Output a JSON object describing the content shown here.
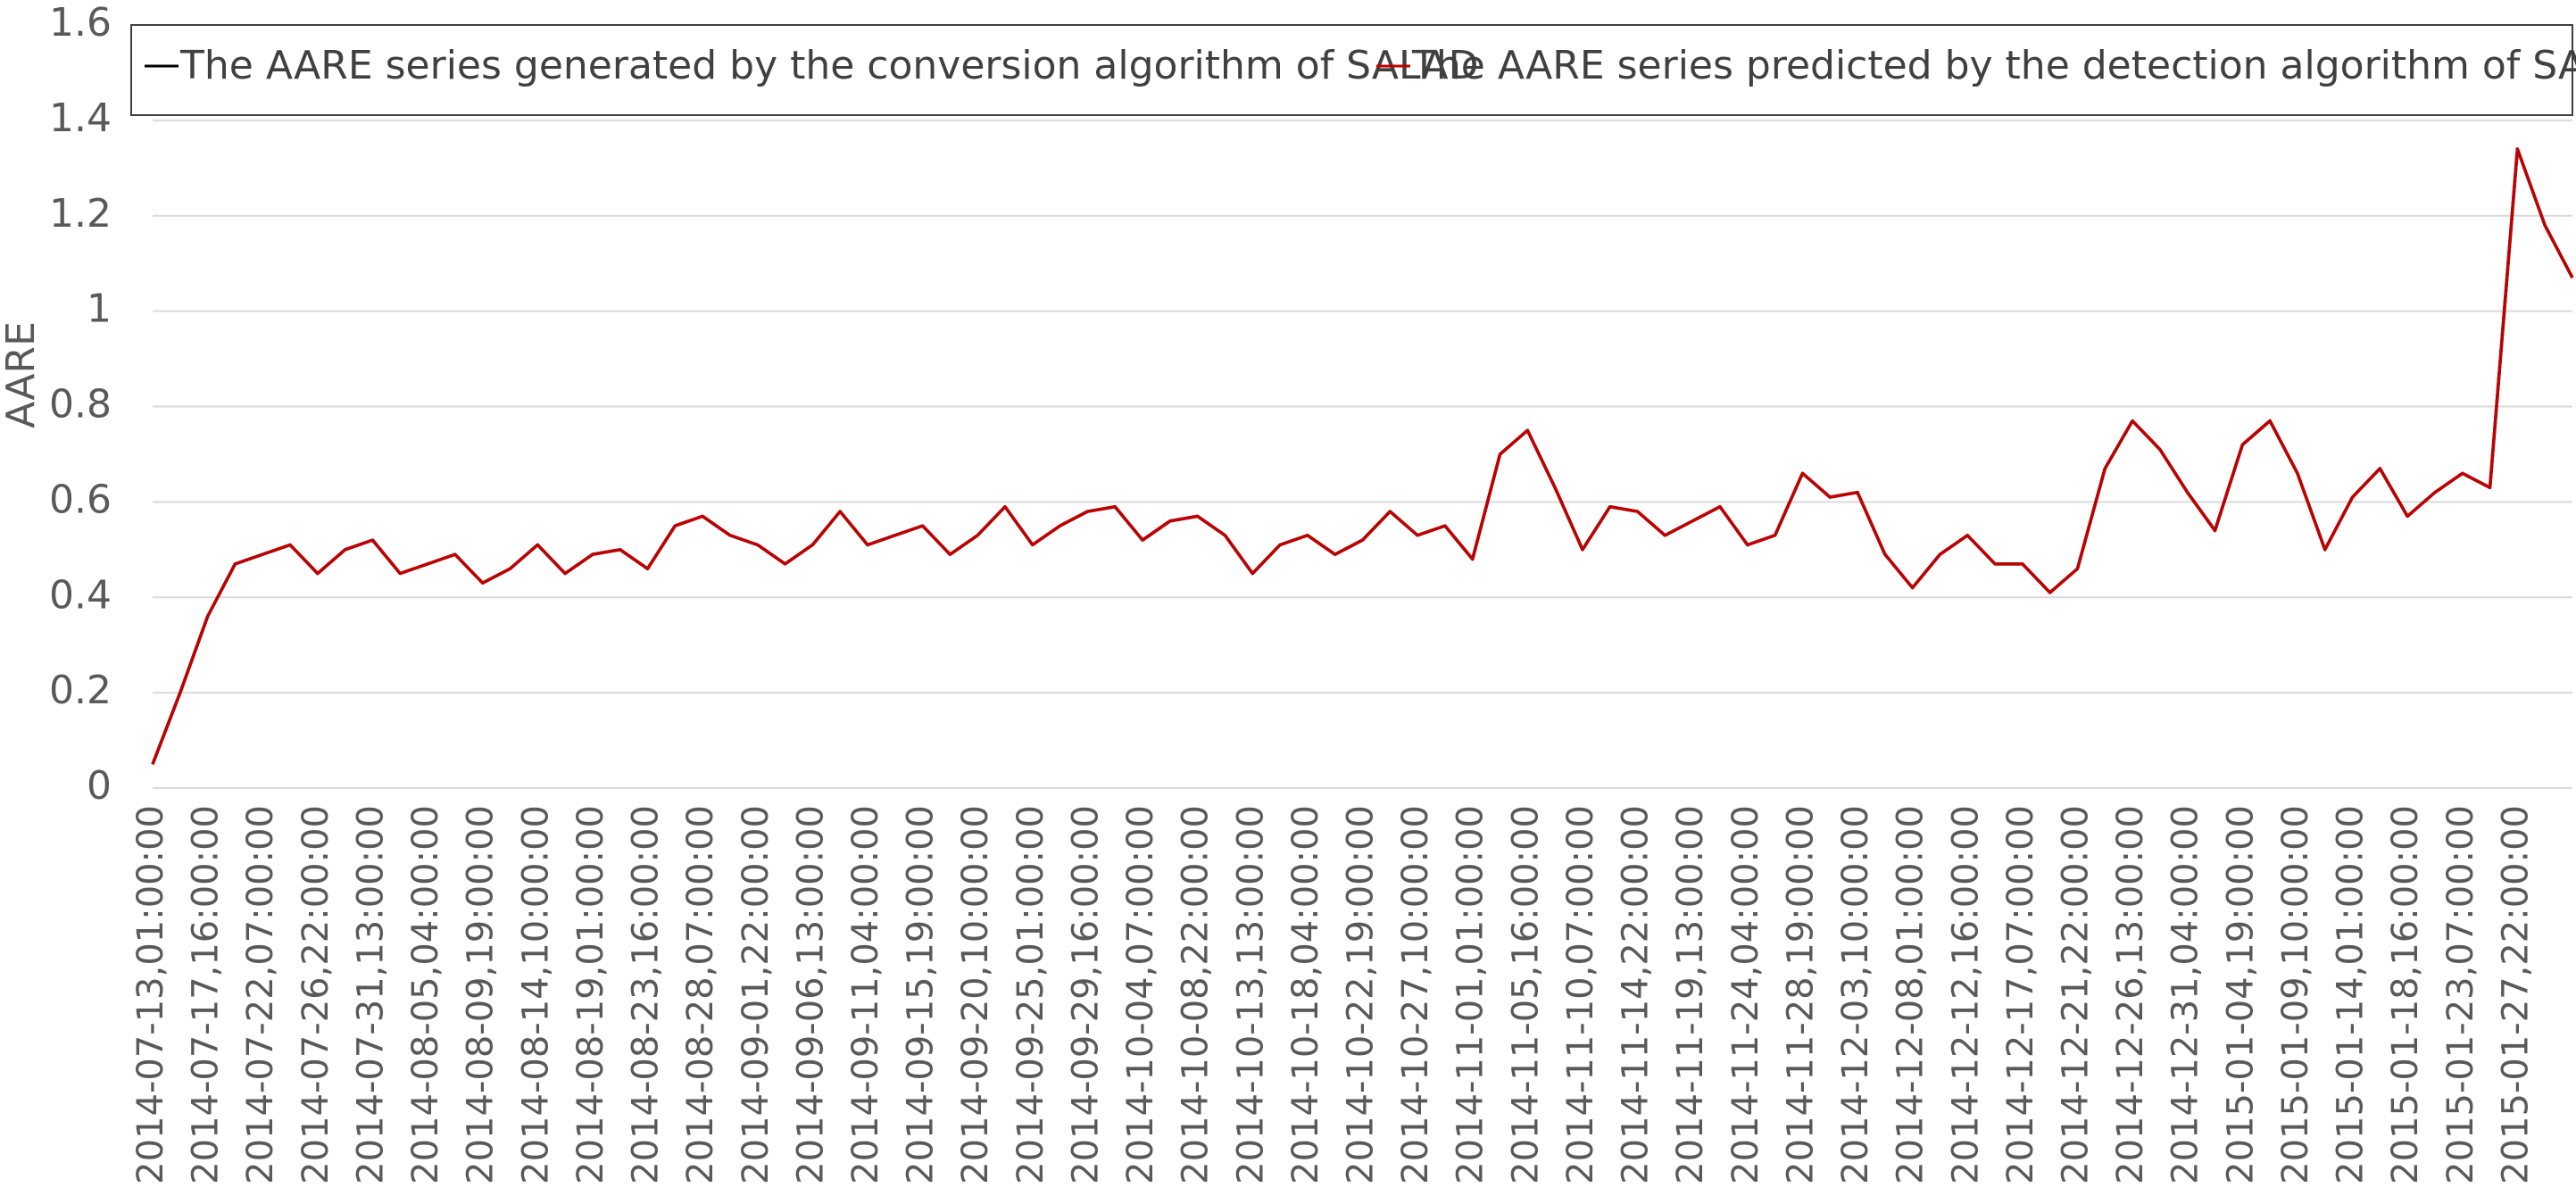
{
  "chart_data": {
    "type": "line",
    "ylabel": "AARE",
    "categories": [
      "2014-07-13,01:00:00",
      null,
      "2014-07-17,16:00:00",
      null,
      "2014-07-22,07:00:00",
      null,
      "2014-07-26,22:00:00",
      null,
      "2014-07-31,13:00:00",
      null,
      "2014-08-05,04:00:00",
      null,
      "2014-08-09,19:00:00",
      null,
      "2014-08-14,10:00:00",
      null,
      "2014-08-19,01:00:00",
      null,
      "2014-08-23,16:00:00",
      null,
      "2014-08-28,07:00:00",
      null,
      "2014-09-01,22:00:00",
      null,
      "2014-09-06,13:00:00",
      null,
      "2014-09-11,04:00:00",
      null,
      "2014-09-15,19:00:00",
      null,
      "2014-09-20,10:00:00",
      null,
      "2014-09-25,01:00:00",
      null,
      "2014-09-29,16:00:00",
      null,
      "2014-10-04,07:00:00",
      null,
      "2014-10-08,22:00:00",
      null,
      "2014-10-13,13:00:00",
      null,
      "2014-10-18,04:00:00",
      null,
      "2014-10-22,19:00:00",
      null,
      "2014-10-27,10:00:00",
      null,
      "2014-11-01,01:00:00",
      null,
      "2014-11-05,16:00:00",
      null,
      "2014-11-10,07:00:00",
      null,
      "2014-11-14,22:00:00",
      null,
      "2014-11-19,13:00:00",
      null,
      "2014-11-24,04:00:00",
      null,
      "2014-11-28,19:00:00",
      null,
      "2014-12-03,10:00:00",
      null,
      "2014-12-08,01:00:00",
      null,
      "2014-12-12,16:00:00",
      null,
      "2014-12-17,07:00:00",
      null,
      "2014-12-21,22:00:00",
      null,
      "2014-12-26,13:00:00",
      null,
      "2014-12-31,04:00:00",
      null,
      "2015-01-04,19:00:00",
      null,
      "2015-01-09,10:00:00",
      null,
      "2015-01-14,01:00:00",
      null,
      "2015-01-18,16:00:00",
      null,
      "2015-01-23,07:00:00",
      null,
      "2015-01-27,22:00:00",
      null,
      null
    ],
    "series": [
      {
        "name": "The AARE series generated by the conversion algorithm of SALAD",
        "color": "#000000",
        "values": [
          0.05,
          0.2,
          0.36,
          0.47,
          0.49,
          0.51,
          0.45,
          0.5,
          0.52,
          0.45,
          0.47,
          0.49,
          0.43,
          0.46,
          0.51,
          0.45,
          0.49,
          0.5,
          0.46,
          0.55,
          0.57,
          0.53,
          0.51,
          0.47,
          0.51,
          0.58,
          0.51,
          0.53,
          0.55,
          0.49,
          0.53,
          0.59,
          0.51,
          0.55,
          0.58,
          0.59,
          0.52,
          0.56,
          0.57,
          0.53,
          0.45,
          0.51,
          0.53,
          0.49,
          0.52,
          0.58,
          0.53,
          0.55,
          0.48,
          0.7,
          0.75,
          0.63,
          0.5,
          0.59,
          0.58,
          0.53,
          0.56,
          0.59,
          0.51,
          0.53,
          0.66,
          0.61,
          0.62,
          0.49,
          0.42,
          0.49,
          0.53,
          0.47,
          0.47,
          0.41,
          0.46,
          0.67,
          0.77,
          0.71,
          0.62,
          0.54,
          0.72,
          0.77,
          0.66,
          0.5,
          0.61,
          0.67,
          0.57,
          0.62,
          0.66,
          0.63,
          1.34,
          1.18,
          1.07
        ]
      },
      {
        "name": "The AARE series predicted by the detection algorithm of SALAD",
        "color": "#c00000",
        "values": [
          0.05,
          0.2,
          0.36,
          0.47,
          0.49,
          0.51,
          0.45,
          0.5,
          0.52,
          0.45,
          0.47,
          0.49,
          0.43,
          0.46,
          0.51,
          0.45,
          0.49,
          0.5,
          0.46,
          0.55,
          0.57,
          0.53,
          0.51,
          0.47,
          0.51,
          0.58,
          0.51,
          0.53,
          0.55,
          0.49,
          0.53,
          0.59,
          0.51,
          0.55,
          0.58,
          0.59,
          0.52,
          0.56,
          0.57,
          0.53,
          0.45,
          0.51,
          0.53,
          0.49,
          0.52,
          0.58,
          0.53,
          0.55,
          0.48,
          0.7,
          0.75,
          0.63,
          0.5,
          0.59,
          0.58,
          0.53,
          0.56,
          0.59,
          0.51,
          0.53,
          0.66,
          0.61,
          0.62,
          0.49,
          0.42,
          0.49,
          0.53,
          0.47,
          0.47,
          0.41,
          0.46,
          0.67,
          0.77,
          0.71,
          0.62,
          0.54,
          0.72,
          0.77,
          0.66,
          0.5,
          0.61,
          0.67,
          0.57,
          0.62,
          0.66,
          0.63,
          1.34,
          1.18,
          1.07
        ]
      }
    ],
    "ylim": [
      0,
      1.6
    ],
    "yticks": [
      0,
      0.2,
      0.4,
      0.6,
      0.8,
      1,
      1.2,
      1.4,
      1.6
    ],
    "grid": true
  }
}
